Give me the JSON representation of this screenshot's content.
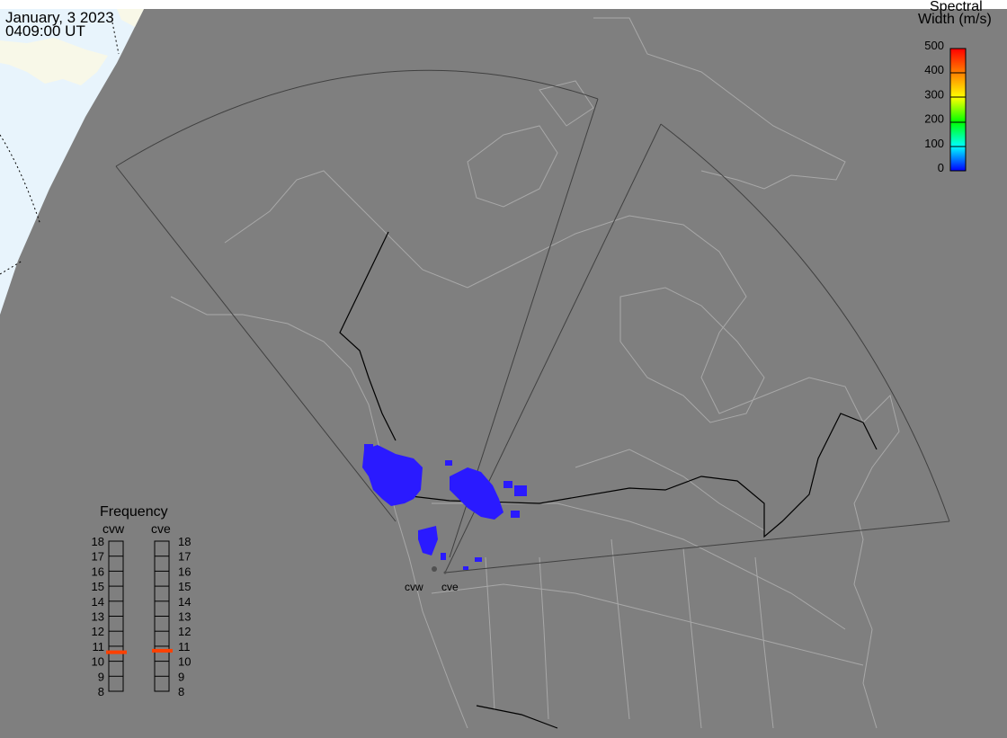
{
  "header": {
    "date": "January, 3 2023",
    "time": "0409:00 UT"
  },
  "colorbar": {
    "title_line1": "Spectral",
    "title_line2": "Width (m/s)",
    "ticks": [
      "500",
      "400",
      "300",
      "200",
      "100",
      "0"
    ],
    "range": [
      0,
      500
    ],
    "colors": [
      "#0000ff",
      "#00ffff",
      "#00ff00",
      "#ffff00",
      "#ff8000",
      "#ff0000"
    ]
  },
  "radars": [
    {
      "code": "cvw",
      "frequency_mhz": 10.6
    },
    {
      "code": "cve",
      "frequency_mhz": 10.7
    }
  ],
  "frequency_panel": {
    "title": "Frequency",
    "ticks": [
      "18",
      "17",
      "16",
      "15",
      "14",
      "13",
      "12",
      "11",
      "10",
      "9",
      "8"
    ],
    "range": [
      8,
      18
    ],
    "marker_color": "#ff4000"
  },
  "colors": {
    "background": "#7f7f7f",
    "ocean_day": "#e8f4fc",
    "land_day": "#f8f8e8",
    "scatter": "#2a1aff",
    "coast": "#a8a8a8"
  }
}
